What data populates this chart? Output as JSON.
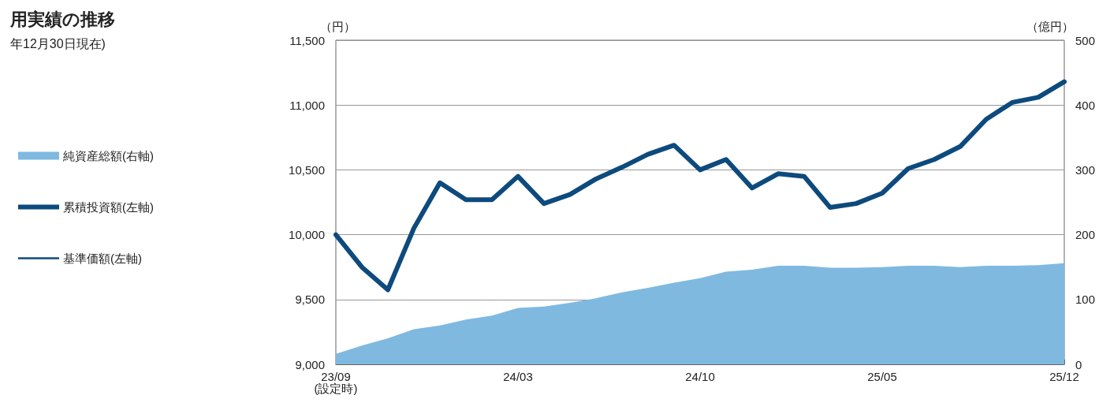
{
  "chart_data": {
    "type": "line",
    "title": "用実績の推移",
    "subtitle": "年12月30日現在)",
    "ylabel": "（円）",
    "y2label": "（億円）",
    "categories": [
      "23/09\n(設定時)",
      null,
      null,
      null,
      null,
      null,
      null,
      "24/03",
      null,
      null,
      null,
      null,
      null,
      null,
      "24/10",
      null,
      null,
      null,
      null,
      null,
      null,
      "25/05",
      null,
      null,
      null,
      null,
      null,
      null,
      "25/12"
    ],
    "series": [
      {
        "name": "純資産総額(右軸)",
        "type": "area",
        "axis": "y2",
        "color": "#7fb9e0",
        "values": [
          16,
          29,
          40,
          54,
          60,
          69,
          75,
          87,
          89,
          95,
          102,
          111,
          118,
          126,
          133,
          143,
          146,
          152,
          152,
          149,
          149,
          150,
          152,
          152,
          150,
          152,
          152,
          153,
          156
        ]
      },
      {
        "name": "累積投資額(左軸)",
        "color": "#0d4a7d",
        "values": [
          10000,
          9750,
          9575,
          10050,
          10400,
          10270,
          10270,
          10450,
          10240,
          10310,
          10430,
          10520,
          10620,
          10690,
          10500,
          10580,
          10360,
          10470,
          10450,
          10210,
          10240,
          10320,
          10510,
          10580,
          10680,
          10890,
          11020,
          11060,
          11180
        ]
      },
      {
        "name": "基準価額(左軸)",
        "color": "#0d4a7d",
        "values": [
          null,
          null,
          null,
          null,
          null,
          null,
          null,
          null,
          null,
          null,
          null,
          null,
          null,
          null,
          null,
          null,
          null,
          null,
          null,
          null,
          null,
          null,
          null,
          null,
          null,
          null,
          null,
          null,
          null
        ]
      }
    ],
    "ylim": [
      9000,
      11500
    ],
    "yticks": [
      {
        "value": 9000,
        "label": "9,000"
      },
      {
        "value": 9500,
        "label": "9,500"
      },
      {
        "value": 10000,
        "label": "10,000"
      },
      {
        "value": 10500,
        "label": "10,500"
      },
      {
        "value": 11000,
        "label": "11,000"
      },
      {
        "value": 11500,
        "label": "11,500"
      }
    ],
    "y2lim": [
      0,
      500
    ],
    "y2ticks": [
      0,
      100,
      200,
      300,
      400,
      500
    ],
    "grid": "y",
    "legend": "left",
    "marker": "none",
    "line_style": "solid"
  }
}
